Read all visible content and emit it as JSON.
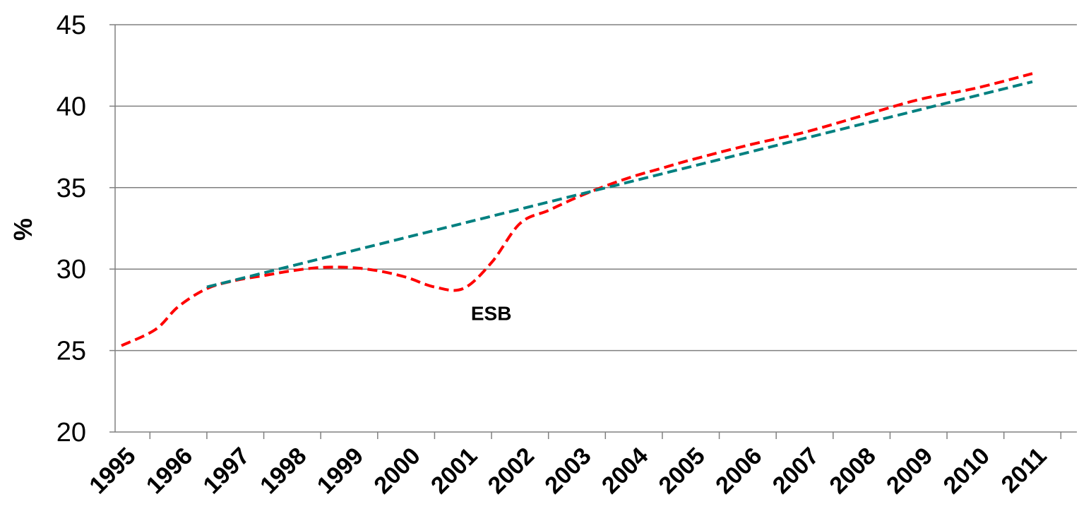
{
  "chart_data": {
    "type": "line",
    "title": "",
    "xlabel": "",
    "ylabel": "%",
    "ylim": [
      20,
      45
    ],
    "yticks": [
      "20",
      "25",
      "30",
      "35",
      "40",
      "45"
    ],
    "categories": [
      "1995",
      "1996",
      "1997",
      "1998",
      "1999",
      "2000",
      "2001",
      "2002",
      "2003",
      "2004",
      "2005",
      "2006",
      "2007",
      "2008",
      "2009",
      "2010",
      "2011"
    ],
    "grid": true,
    "series": [
      {
        "color": "#ff0000",
        "style": "dashed",
        "x": [
          1995,
          1995.6,
          1996,
          1996.5,
          1997,
          1997.5,
          1998,
          1998.5,
          1999,
          1999.5,
          2000,
          2000.5,
          2001,
          2001.5,
          2002,
          2002.5,
          2003,
          2003.5,
          2004,
          2004.5,
          2005,
          2006,
          2007,
          2008,
          2009,
          2010,
          2011
        ],
        "values": [
          25.3,
          26.3,
          27.7,
          28.8,
          29.3,
          29.6,
          29.9,
          30.1,
          30.1,
          29.9,
          29.5,
          28.9,
          28.8,
          30.4,
          32.8,
          33.6,
          34.4,
          35.1,
          35.7,
          36.2,
          36.7,
          37.6,
          38.4,
          39.4,
          40.4,
          41.1,
          42.0
        ]
      },
      {
        "color": "#008080",
        "style": "dashed",
        "x": [
          1996.5,
          2011
        ],
        "values": [
          28.9,
          41.5
        ]
      }
    ],
    "annotations": [
      {
        "text": "ESB",
        "x": 2001.2,
        "y": 27.3
      }
    ]
  },
  "colors": {
    "grid": "#808080",
    "axis": "#808080"
  }
}
